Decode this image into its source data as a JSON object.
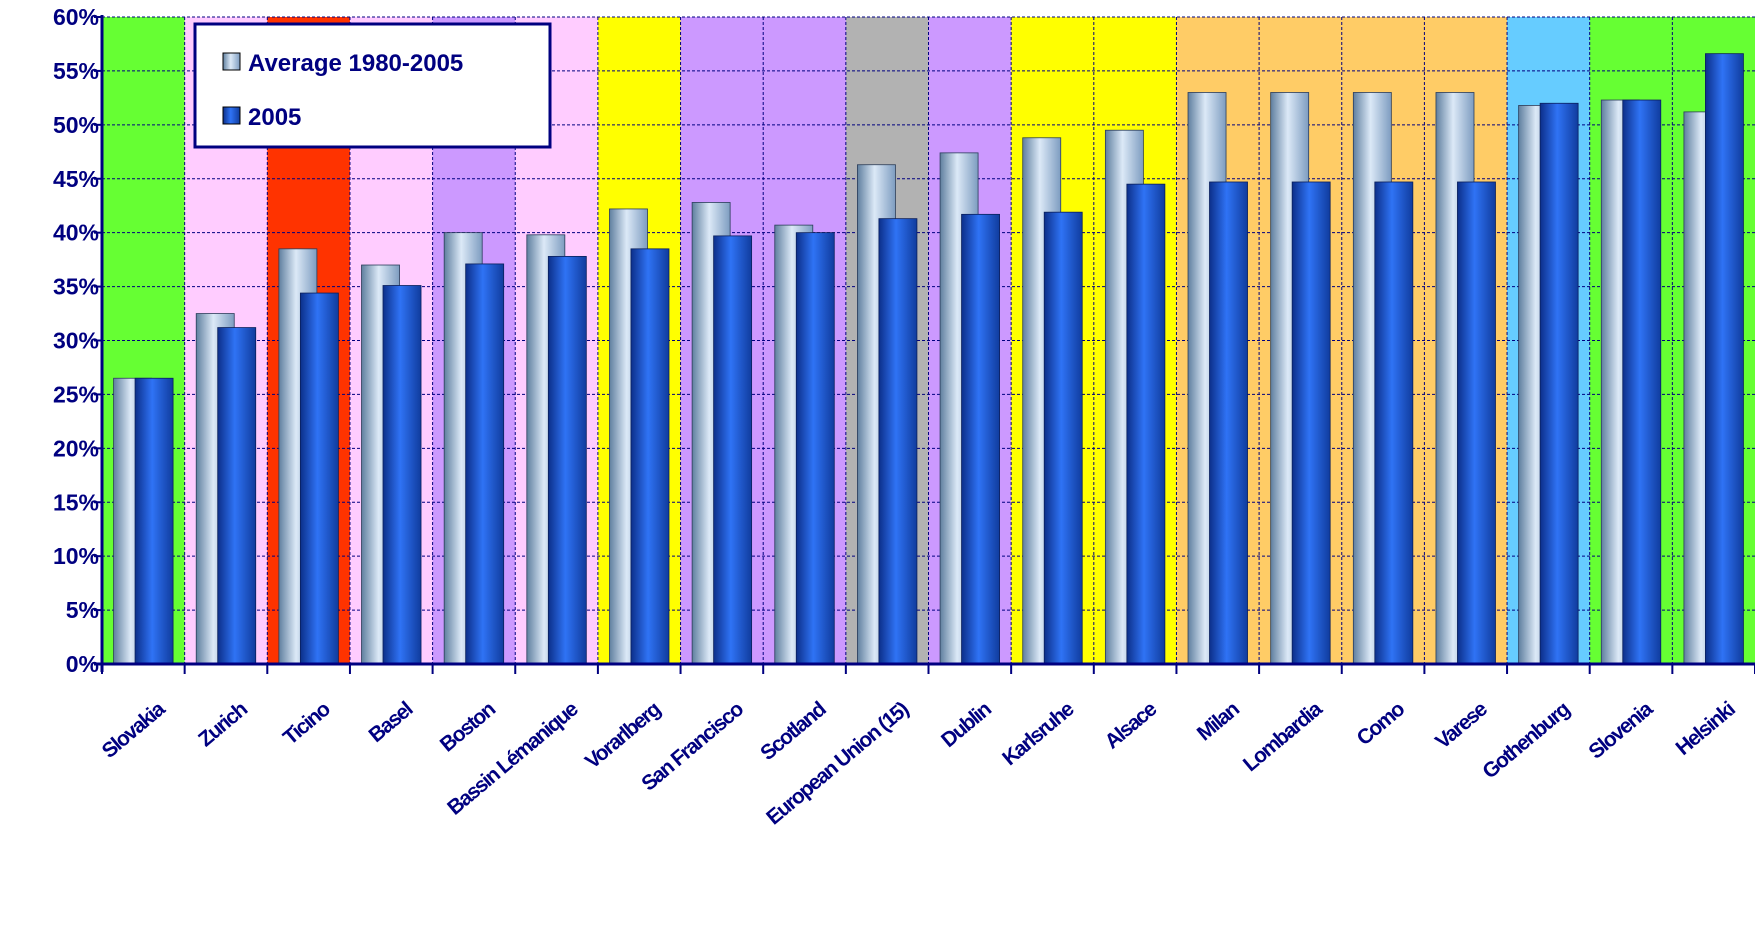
{
  "chart_data": {
    "type": "bar",
    "categories": [
      "Slovakia",
      "Zurich",
      "Ticino",
      "Basel",
      "Boston",
      "Bassin Lémanique",
      "Vorarlberg",
      "San Francisco",
      "Scotland",
      "European Union (15)",
      "Dublin",
      "Karlsruhe",
      "Alsace",
      "Milan",
      "Lombardia",
      "Como",
      "Varese",
      "Gothenburg",
      "Slovenia",
      "Helsinki"
    ],
    "series": [
      {
        "name": "Average 1980-2005",
        "values": [
          26.5,
          32.5,
          38.5,
          37.0,
          40.0,
          39.8,
          42.2,
          42.8,
          40.7,
          46.3,
          47.4,
          48.8,
          49.5,
          53.0,
          53.0,
          53.0,
          53.0,
          51.8,
          52.3,
          51.2
        ]
      },
      {
        "name": "2005",
        "values": [
          26.5,
          31.2,
          34.4,
          35.1,
          37.1,
          37.8,
          38.5,
          39.7,
          40.0,
          41.3,
          41.7,
          41.9,
          44.5,
          44.7,
          44.7,
          44.7,
          44.7,
          52.0,
          52.3,
          56.6
        ]
      }
    ],
    "ylim": [
      0,
      60
    ],
    "yticks": [
      0,
      5,
      10,
      15,
      20,
      25,
      30,
      35,
      40,
      45,
      50,
      55,
      60
    ],
    "ytick_labels": [
      "0%",
      "5%",
      "10%",
      "15%",
      "20%",
      "25%",
      "30%",
      "35%",
      "40%",
      "45%",
      "50%",
      "55%",
      "60%"
    ],
    "grid": true,
    "legend_position": "top-left",
    "band_colors": [
      "#66ff33",
      "#ffccff",
      "#ff3300",
      "#ffccff",
      "#cc99ff",
      "#ffccff",
      "#ffff00",
      "#cc99ff",
      "#cc99ff",
      "#b2b2b2",
      "#cc99ff",
      "#ffff00",
      "#ffff00",
      "#ffcc66",
      "#ffcc66",
      "#ffcc66",
      "#ffcc66",
      "#66ccff",
      "#66ff33",
      "#66ff33"
    ],
    "series_colors": {
      "average": "#a9c7ea",
      "y2005": "#1f5de6"
    },
    "text_color": "#000080"
  }
}
